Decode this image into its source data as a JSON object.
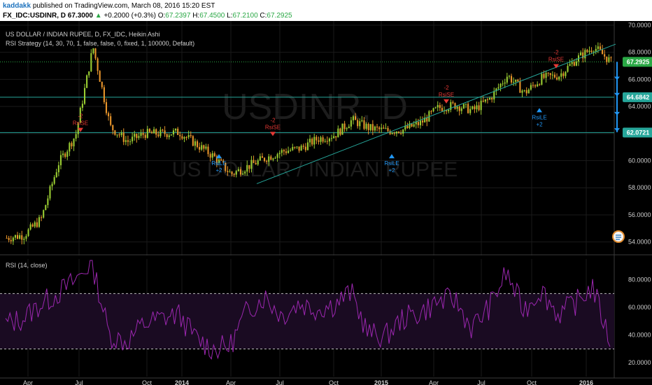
{
  "header": {
    "author": "kaddakk",
    "published": "published on TradingView.com, March 08, 2016 15:20 EST",
    "symbol": "FX_IDC:USDINR, D",
    "last": "67.3000",
    "change": "+0.2000 (+0.3%)",
    "o_label": "O:",
    "o": "67.2397",
    "h_label": "H:",
    "h": "67.4500",
    "l_label": "L:",
    "l": "67.2100",
    "c_label": "C:",
    "c": "67.2925"
  },
  "legend": {
    "main": "US DOLLAR / INDIAN RUPEE, D, FX_IDC, Heikin Ashi",
    "strategy": "RSI Strategy (14, 30, 70, 1, false, false, 0, fixed, 1, 100000, Default)",
    "rsi": "RSI (14, close)"
  },
  "watermark": {
    "line1": "USDINR, D",
    "line2": "US DOLLAR / INDIAN RUPEE"
  },
  "price_axis": {
    "ticks": [
      "70.0000",
      "68.0000",
      "66.0000",
      "64.0000",
      "62.0000",
      "60.0000",
      "58.0000",
      "56.0000",
      "54.0000"
    ],
    "badges": [
      {
        "text": "67.2925",
        "color": "#2aa845",
        "value": 67.2925
      },
      {
        "text": "64.6842",
        "color": "#26a69a",
        "value": 64.6842
      },
      {
        "text": "62.0721",
        "color": "#26a69a",
        "value": 62.0721
      }
    ]
  },
  "rsi_axis": {
    "ticks": [
      "80.0000",
      "60.0000",
      "40.0000",
      "20.0000"
    ]
  },
  "time_axis": {
    "ticks": [
      "Apr",
      "Jul",
      "Oct",
      "2014",
      "Apr",
      "Jul",
      "Oct",
      "2015",
      "Apr",
      "Jul",
      "Oct",
      "2016"
    ]
  },
  "signals": [
    {
      "label": "RsiSE",
      "qty": "-2",
      "dir": "short"
    },
    {
      "label": "RsiLE",
      "qty": "+2",
      "dir": "long"
    },
    {
      "label": "RsiSE",
      "qty": "-2",
      "dir": "short"
    },
    {
      "label": "RsiLE",
      "qty": "+2",
      "dir": "long"
    },
    {
      "label": "RsiSE",
      "qty": "-2",
      "dir": "short"
    },
    {
      "label": "RsiLE",
      "qty": "+2",
      "dir": "long"
    },
    {
      "label": "RsiSE",
      "qty": "-2",
      "dir": "short"
    }
  ],
  "colors": {
    "up": "#9acd32",
    "down": "#e8952b",
    "rsi": "#9c27b0",
    "hline": "#26a69a",
    "short": "#e53935",
    "long": "#2196f3"
  },
  "chart_data": [
    {
      "type": "line",
      "title": "US DOLLAR / INDIAN RUPEE, D, FX_IDC, Heikin Ashi",
      "x": [
        "2013-03",
        "2013-05",
        "2013-06",
        "2013-07",
        "2013-08",
        "2013-08-28",
        "2013-09",
        "2013-10",
        "2013-12",
        "2014-01",
        "2014-02",
        "2014-03",
        "2014-04",
        "2014-05",
        "2014-06",
        "2014-07",
        "2014-08",
        "2014-09",
        "2014-10",
        "2014-11",
        "2014-12",
        "2015-01",
        "2015-02",
        "2015-03",
        "2015-04",
        "2015-05",
        "2015-06",
        "2015-07",
        "2015-08",
        "2015-09",
        "2015-10",
        "2015-11",
        "2015-12",
        "2016-01",
        "2016-02",
        "2016-03"
      ],
      "series": [
        {
          "values": [
            54.3,
            54.5,
            55.7,
            59.8,
            61.9,
            68.4,
            62.5,
            61.4,
            62.0,
            62.0,
            62.1,
            61.2,
            60.3,
            59.0,
            59.6,
            60.2,
            60.7,
            60.9,
            61.6,
            61.9,
            63.0,
            62.4,
            62.2,
            62.3,
            62.8,
            63.9,
            64.1,
            63.7,
            64.6,
            66.3,
            65.0,
            66.1,
            66.3,
            67.5,
            68.4,
            67.3
          ]
        }
      ],
      "ylim": [
        53,
        70
      ],
      "ylabel": "",
      "hlines": [
        64.6842,
        62.0721
      ]
    },
    {
      "type": "line",
      "title": "RSI (14, close)",
      "series": [
        {
          "values": [
            48,
            52,
            62,
            70,
            79,
            93,
            40,
            35,
            48,
            52,
            55,
            38,
            30,
            32,
            58,
            68,
            54,
            63,
            59,
            62,
            71,
            41,
            39,
            52,
            56,
            64,
            66,
            45,
            60,
            85,
            58,
            73,
            55,
            63,
            75,
            35
          ]
        }
      ],
      "ylim": [
        10,
        95
      ],
      "hlines": [
        70,
        30
      ]
    }
  ]
}
